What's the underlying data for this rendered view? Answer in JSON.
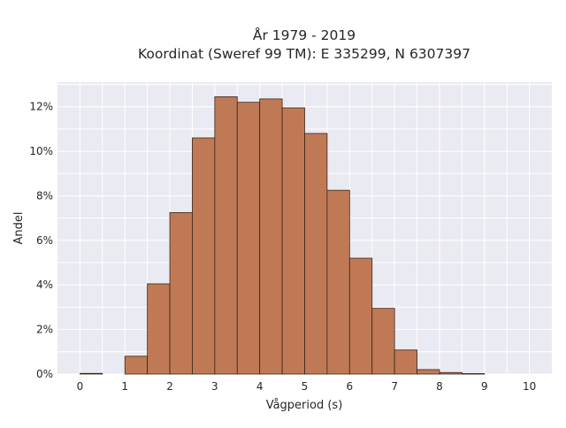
{
  "chart_data": {
    "type": "bar",
    "title_lines": [
      "År 1979 - 2019",
      "Koordinat (Sweref 99 TM): E 335299, N 6307397"
    ],
    "xlabel": "Vågperiod (s)",
    "ylabel": "Andel",
    "x_ticks": [
      "0",
      "1",
      "2",
      "3",
      "4",
      "5",
      "6",
      "7",
      "8",
      "9",
      "10"
    ],
    "y_ticks": [
      "0%",
      "2%",
      "4%",
      "6%",
      "8%",
      "10%",
      "12%"
    ],
    "xlim": [
      -0.5,
      10.5
    ],
    "ylim": [
      0,
      13.1
    ],
    "grid": true,
    "bin_width": 0.5,
    "bins": [
      {
        "x0": 0.0,
        "value": 0.03
      },
      {
        "x0": 0.5,
        "value": 0.0
      },
      {
        "x0": 1.0,
        "value": 0.8
      },
      {
        "x0": 1.5,
        "value": 4.05
      },
      {
        "x0": 2.0,
        "value": 7.25
      },
      {
        "x0": 2.5,
        "value": 10.6
      },
      {
        "x0": 3.0,
        "value": 12.45
      },
      {
        "x0": 3.5,
        "value": 12.2
      },
      {
        "x0": 4.0,
        "value": 12.35
      },
      {
        "x0": 4.5,
        "value": 11.95
      },
      {
        "x0": 5.0,
        "value": 10.8
      },
      {
        "x0": 5.5,
        "value": 8.25
      },
      {
        "x0": 6.0,
        "value": 5.2
      },
      {
        "x0": 6.5,
        "value": 2.95
      },
      {
        "x0": 7.0,
        "value": 1.08
      },
      {
        "x0": 7.5,
        "value": 0.2
      },
      {
        "x0": 8.0,
        "value": 0.07
      },
      {
        "x0": 8.5,
        "value": 0.02
      }
    ],
    "colors": {
      "bar_fill": "#bf7a55",
      "bar_edge": "#3a2418",
      "plot_bg": "#eaeaf2",
      "grid": "#ffffff"
    }
  }
}
